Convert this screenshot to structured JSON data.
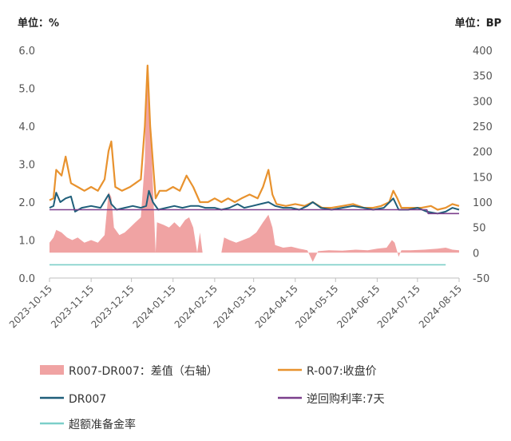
{
  "chart_data": {
    "type": "line",
    "left_unit": "单位：%",
    "right_unit": "单位：BP",
    "ylim_left": [
      0,
      6
    ],
    "ylim_right": [
      -50,
      400
    ],
    "yticks_left": [
      "0.0",
      "1.0",
      "2.0",
      "3.0",
      "4.0",
      "5.0",
      "6.0"
    ],
    "yticks_right": [
      "-50",
      "0",
      "50",
      "100",
      "150",
      "200",
      "250",
      "300",
      "350",
      "400"
    ],
    "xticks": [
      "2023-10-15",
      "2023-11-15",
      "2023-12-15",
      "2024-01-15",
      "2024-02-15",
      "2024-03-15",
      "2024-04-15",
      "2024-05-15",
      "2024-06-15",
      "2024-07-15",
      "2024-08-15"
    ],
    "x_start": "2023-10-15",
    "x_end": "2024-08-15",
    "colors": {
      "spread": "#f0a3a3",
      "r007": "#e8922e",
      "dr007": "#1f5f7a",
      "reverse_repo": "#7b3f8c",
      "excess_reserve": "#7ccfc9"
    },
    "series": [
      {
        "name": "R007-DR007：差值（右轴）",
        "axis": "right",
        "kind": "area",
        "points": [
          [
            "2023-10-15",
            20
          ],
          [
            "2023-10-18",
            30
          ],
          [
            "2023-10-20",
            45
          ],
          [
            "2023-10-24",
            40
          ],
          [
            "2023-10-28",
            30
          ],
          [
            "2023-11-01",
            25
          ],
          [
            "2023-11-05",
            30
          ],
          [
            "2023-11-10",
            20
          ],
          [
            "2023-11-15",
            25
          ],
          [
            "2023-11-20",
            20
          ],
          [
            "2023-11-25",
            35
          ],
          [
            "2023-11-28",
            120
          ],
          [
            "2023-11-30",
            110
          ],
          [
            "2023-12-02",
            50
          ],
          [
            "2023-12-06",
            35
          ],
          [
            "2023-12-10",
            40
          ],
          [
            "2023-12-14",
            50
          ],
          [
            "2023-12-18",
            60
          ],
          [
            "2023-12-22",
            70
          ],
          [
            "2023-12-25",
            180
          ],
          [
            "2023-12-26",
            330
          ],
          [
            "2023-12-28",
            340
          ],
          [
            "2023-12-30",
            200
          ],
          [
            "2024-01-02",
            0
          ],
          [
            "2024-01-03",
            60
          ],
          [
            "2024-01-08",
            55
          ],
          [
            "2024-01-12",
            50
          ],
          [
            "2024-01-16",
            60
          ],
          [
            "2024-01-20",
            50
          ],
          [
            "2024-01-24",
            65
          ],
          [
            "2024-01-27",
            70
          ],
          [
            "2024-01-30",
            50
          ],
          [
            "2024-02-02",
            0
          ],
          [
            "2024-02-04",
            40
          ],
          [
            "2024-02-06",
            0
          ],
          [
            "2024-02-20",
            0
          ],
          [
            "2024-02-22",
            30
          ],
          [
            "2024-02-26",
            25
          ],
          [
            "2024-03-02",
            20
          ],
          [
            "2024-03-07",
            25
          ],
          [
            "2024-03-12",
            30
          ],
          [
            "2024-03-17",
            40
          ],
          [
            "2024-03-22",
            60
          ],
          [
            "2024-03-26",
            75
          ],
          [
            "2024-03-29",
            50
          ],
          [
            "2024-03-31",
            15
          ],
          [
            "2024-04-06",
            10
          ],
          [
            "2024-04-12",
            12
          ],
          [
            "2024-04-18",
            8
          ],
          [
            "2024-04-24",
            5
          ],
          [
            "2024-04-28",
            -18
          ],
          [
            "2024-05-02",
            3
          ],
          [
            "2024-05-10",
            5
          ],
          [
            "2024-05-20",
            4
          ],
          [
            "2024-05-30",
            6
          ],
          [
            "2024-06-08",
            5
          ],
          [
            "2024-06-15",
            8
          ],
          [
            "2024-06-22",
            10
          ],
          [
            "2024-06-26",
            25
          ],
          [
            "2024-06-28",
            20
          ],
          [
            "2024-07-01",
            -8
          ],
          [
            "2024-07-03",
            5
          ],
          [
            "2024-07-10",
            5
          ],
          [
            "2024-07-20",
            6
          ],
          [
            "2024-07-30",
            8
          ],
          [
            "2024-08-05",
            10
          ],
          [
            "2024-08-10",
            6
          ],
          [
            "2024-08-15",
            5
          ]
        ]
      },
      {
        "name": "R-007:收盘价",
        "axis": "left",
        "kind": "line",
        "points": [
          [
            "2023-10-15",
            2.05
          ],
          [
            "2023-10-18",
            2.1
          ],
          [
            "2023-10-20",
            2.85
          ],
          [
            "2023-10-24",
            2.7
          ],
          [
            "2023-10-27",
            3.2
          ],
          [
            "2023-10-31",
            2.5
          ],
          [
            "2023-11-05",
            2.4
          ],
          [
            "2023-11-10",
            2.3
          ],
          [
            "2023-11-15",
            2.4
          ],
          [
            "2023-11-20",
            2.3
          ],
          [
            "2023-11-25",
            2.6
          ],
          [
            "2023-11-28",
            3.35
          ],
          [
            "2023-11-30",
            3.6
          ],
          [
            "2023-12-03",
            2.4
          ],
          [
            "2023-12-08",
            2.3
          ],
          [
            "2023-12-14",
            2.4
          ],
          [
            "2023-12-18",
            2.5
          ],
          [
            "2023-12-22",
            2.6
          ],
          [
            "2023-12-25",
            4.0
          ],
          [
            "2023-12-27",
            5.6
          ],
          [
            "2023-12-29",
            4.0
          ],
          [
            "2024-01-02",
            2.1
          ],
          [
            "2024-01-05",
            2.3
          ],
          [
            "2024-01-10",
            2.3
          ],
          [
            "2024-01-15",
            2.4
          ],
          [
            "2024-01-20",
            2.3
          ],
          [
            "2024-01-25",
            2.7
          ],
          [
            "2024-01-30",
            2.4
          ],
          [
            "2024-02-04",
            2.0
          ],
          [
            "2024-02-10",
            2.0
          ],
          [
            "2024-02-15",
            2.1
          ],
          [
            "2024-02-20",
            2.0
          ],
          [
            "2024-02-25",
            2.1
          ],
          [
            "2024-03-01",
            2.0
          ],
          [
            "2024-03-06",
            2.1
          ],
          [
            "2024-03-12",
            2.2
          ],
          [
            "2024-03-18",
            2.1
          ],
          [
            "2024-03-22",
            2.4
          ],
          [
            "2024-03-26",
            2.85
          ],
          [
            "2024-03-29",
            2.2
          ],
          [
            "2024-04-01",
            1.95
          ],
          [
            "2024-04-08",
            1.9
          ],
          [
            "2024-04-15",
            1.95
          ],
          [
            "2024-04-22",
            1.9
          ],
          [
            "2024-04-28",
            2.0
          ],
          [
            "2024-05-05",
            1.85
          ],
          [
            "2024-05-12",
            1.85
          ],
          [
            "2024-05-20",
            1.9
          ],
          [
            "2024-05-28",
            1.95
          ],
          [
            "2024-06-05",
            1.85
          ],
          [
            "2024-06-12",
            1.85
          ],
          [
            "2024-06-18",
            1.9
          ],
          [
            "2024-06-24",
            2.0
          ],
          [
            "2024-06-27",
            2.3
          ],
          [
            "2024-06-30",
            2.1
          ],
          [
            "2024-07-03",
            1.85
          ],
          [
            "2024-07-10",
            1.85
          ],
          [
            "2024-07-18",
            1.85
          ],
          [
            "2024-07-25",
            1.9
          ],
          [
            "2024-07-30",
            1.8
          ],
          [
            "2024-08-05",
            1.85
          ],
          [
            "2024-08-10",
            1.95
          ],
          [
            "2024-08-15",
            1.9
          ]
        ]
      },
      {
        "name": "DR007",
        "axis": "left",
        "kind": "line",
        "points": [
          [
            "2023-10-15",
            1.85
          ],
          [
            "2023-10-18",
            1.9
          ],
          [
            "2023-10-20",
            2.25
          ],
          [
            "2023-10-23",
            2.0
          ],
          [
            "2023-10-27",
            2.1
          ],
          [
            "2023-10-31",
            2.15
          ],
          [
            "2023-11-03",
            1.75
          ],
          [
            "2023-11-08",
            1.85
          ],
          [
            "2023-11-15",
            1.9
          ],
          [
            "2023-11-22",
            1.85
          ],
          [
            "2023-11-28",
            2.2
          ],
          [
            "2023-11-30",
            1.95
          ],
          [
            "2023-12-04",
            1.8
          ],
          [
            "2023-12-10",
            1.85
          ],
          [
            "2023-12-16",
            1.9
          ],
          [
            "2023-12-22",
            1.85
          ],
          [
            "2023-12-26",
            1.9
          ],
          [
            "2023-12-28",
            2.3
          ],
          [
            "2023-12-31",
            2.0
          ],
          [
            "2024-01-04",
            1.8
          ],
          [
            "2024-01-10",
            1.85
          ],
          [
            "2024-01-16",
            1.9
          ],
          [
            "2024-01-22",
            1.85
          ],
          [
            "2024-01-28",
            1.9
          ],
          [
            "2024-02-03",
            1.9
          ],
          [
            "2024-02-08",
            1.85
          ],
          [
            "2024-02-15",
            1.85
          ],
          [
            "2024-02-20",
            1.8
          ],
          [
            "2024-02-26",
            1.85
          ],
          [
            "2024-03-03",
            1.95
          ],
          [
            "2024-03-08",
            1.85
          ],
          [
            "2024-03-14",
            1.9
          ],
          [
            "2024-03-20",
            1.95
          ],
          [
            "2024-03-26",
            2.0
          ],
          [
            "2024-03-31",
            1.9
          ],
          [
            "2024-04-06",
            1.85
          ],
          [
            "2024-04-12",
            1.85
          ],
          [
            "2024-04-18",
            1.8
          ],
          [
            "2024-04-24",
            1.9
          ],
          [
            "2024-04-28",
            2.0
          ],
          [
            "2024-05-04",
            1.85
          ],
          [
            "2024-05-12",
            1.8
          ],
          [
            "2024-05-20",
            1.85
          ],
          [
            "2024-05-28",
            1.9
          ],
          [
            "2024-06-05",
            1.85
          ],
          [
            "2024-06-12",
            1.8
          ],
          [
            "2024-06-20",
            1.85
          ],
          [
            "2024-06-27",
            2.1
          ],
          [
            "2024-07-01",
            1.8
          ],
          [
            "2024-07-08",
            1.8
          ],
          [
            "2024-07-15",
            1.85
          ],
          [
            "2024-07-22",
            1.75
          ],
          [
            "2024-07-30",
            1.7
          ],
          [
            "2024-08-05",
            1.75
          ],
          [
            "2024-08-10",
            1.85
          ],
          [
            "2024-08-15",
            1.8
          ]
        ]
      },
      {
        "name": "逆回购利率:7天",
        "axis": "left",
        "kind": "line",
        "points": [
          [
            "2023-10-15",
            1.8
          ],
          [
            "2024-07-22",
            1.8
          ],
          [
            "2024-07-23",
            1.7
          ],
          [
            "2024-08-15",
            1.7
          ]
        ]
      },
      {
        "name": "超额准备金率",
        "axis": "left",
        "kind": "line",
        "points": [
          [
            "2023-10-15",
            0.35
          ],
          [
            "2024-08-05",
            0.35
          ]
        ]
      }
    ],
    "legend": {
      "items": [
        {
          "label": "R007-DR007：差值（右轴）",
          "symbol": "patch",
          "color": "#f0a3a3"
        },
        {
          "label": "R-007:收盘价",
          "symbol": "line",
          "color": "#e8922e"
        },
        {
          "label": "DR007",
          "symbol": "line",
          "color": "#1f5f7a"
        },
        {
          "label": "逆回购利率:7天",
          "symbol": "line",
          "color": "#7b3f8c"
        },
        {
          "label": "超额准备金率",
          "symbol": "line",
          "color": "#7ccfc9"
        }
      ]
    },
    "grid": false
  }
}
